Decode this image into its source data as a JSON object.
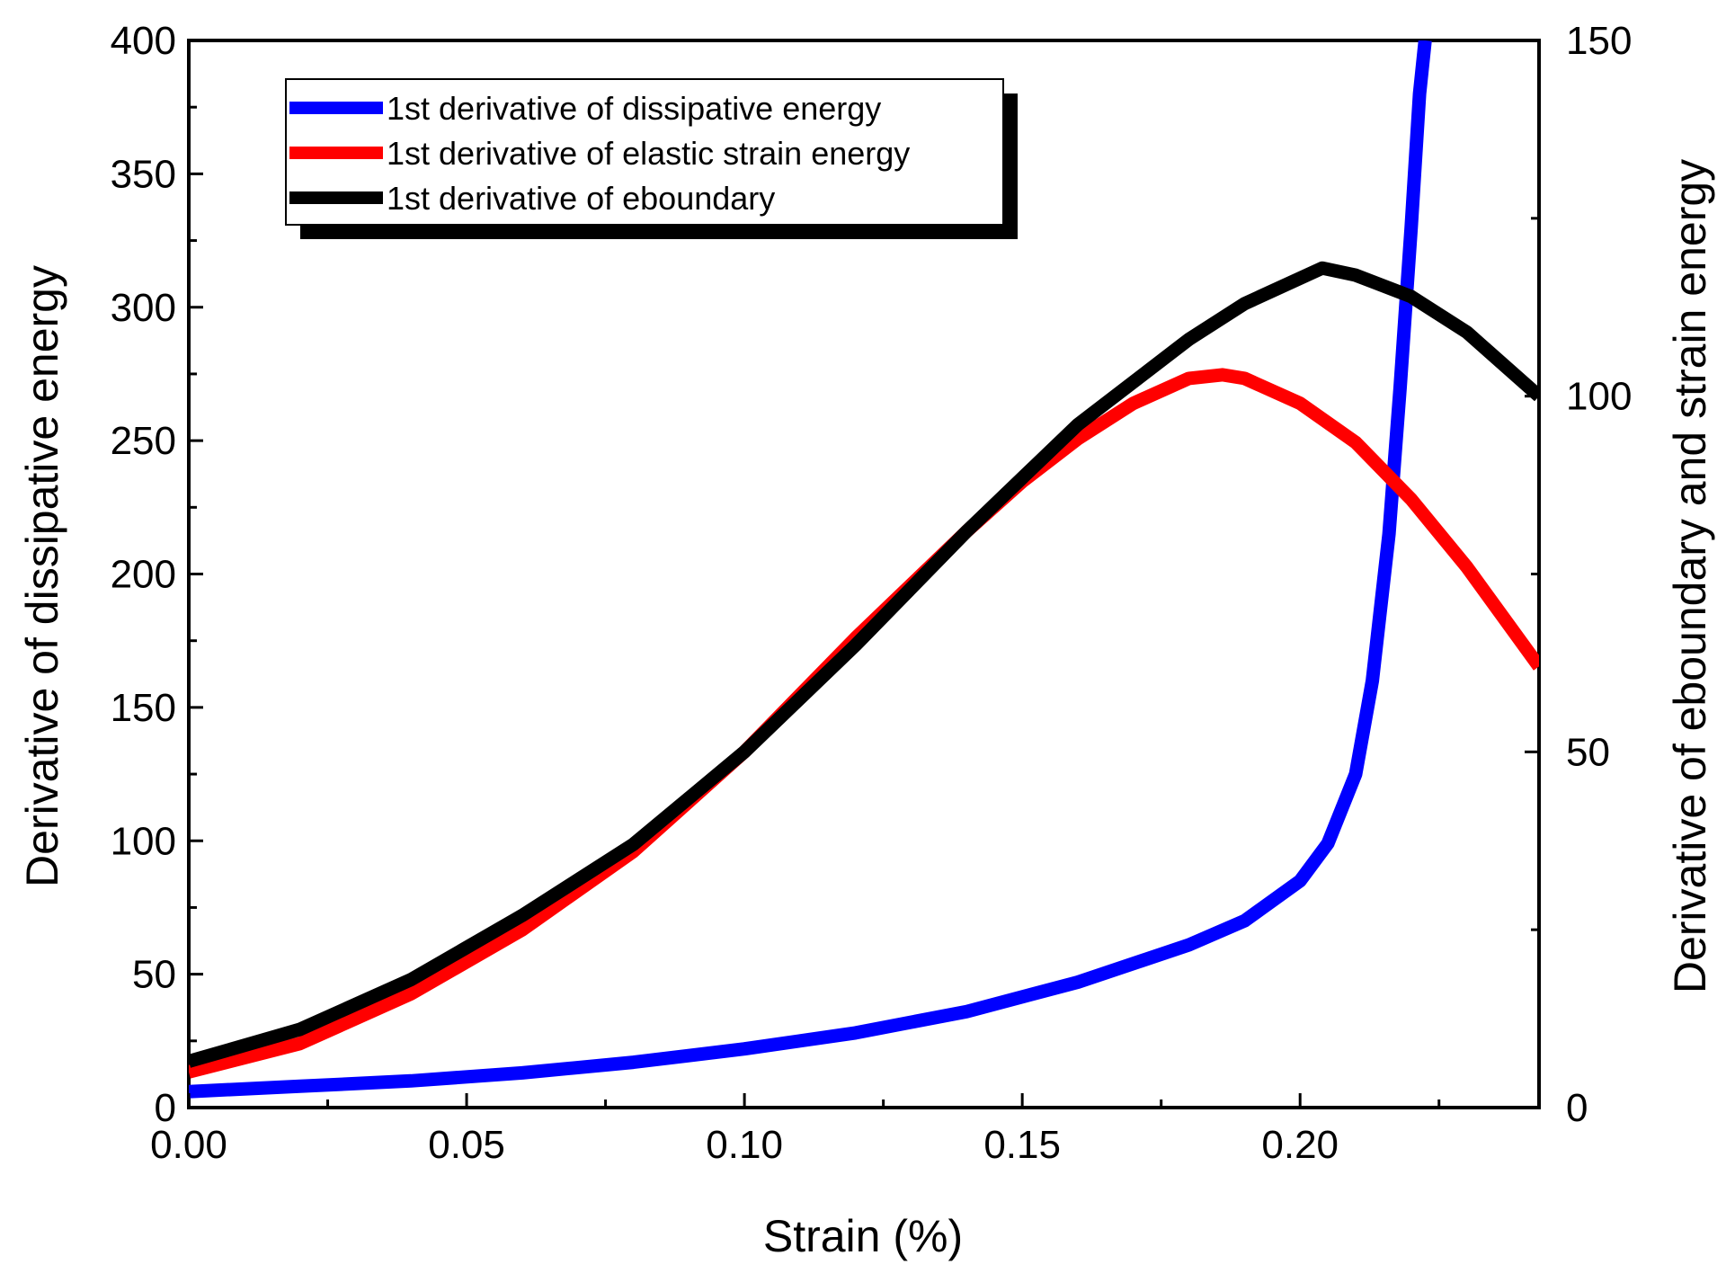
{
  "chart_data": {
    "type": "line",
    "title": "",
    "xlabel": "Strain (%)",
    "ylabel": "Derivative of dissipative energy",
    "y2label": "Derivative of eboundary and strain energy",
    "xlim": [
      0,
      0.243
    ],
    "ylim": [
      0,
      400
    ],
    "y2lim": [
      0,
      150
    ],
    "x_ticks": [
      "0.00",
      "0.05",
      "0.10",
      "0.15",
      "0.20"
    ],
    "y_ticks": [
      "0",
      "50",
      "100",
      "150",
      "200",
      "250",
      "300",
      "350",
      "400"
    ],
    "y2_ticks": [
      "0",
      "50",
      "100",
      "150"
    ],
    "legend_position": "top-left",
    "series": [
      {
        "name": "1st derivative of dissipative energy",
        "color": "#0000ff",
        "axis": "left",
        "x": [
          0,
          0.02,
          0.04,
          0.06,
          0.08,
          0.1,
          0.12,
          0.14,
          0.16,
          0.18,
          0.19,
          0.2,
          0.205,
          0.21,
          0.213,
          0.216,
          0.218,
          0.22,
          0.2215,
          0.2225
        ],
        "y": [
          6,
          8,
          10,
          13,
          17,
          22,
          28,
          36,
          47,
          61,
          70,
          85,
          99,
          125,
          160,
          215,
          270,
          330,
          380,
          400
        ]
      },
      {
        "name": "1st derivative of elastic strain energy",
        "color": "#ff0000",
        "axis": "right",
        "x": [
          0,
          0.02,
          0.04,
          0.06,
          0.08,
          0.1,
          0.12,
          0.14,
          0.15,
          0.16,
          0.17,
          0.18,
          0.186,
          0.19,
          0.2,
          0.21,
          0.22,
          0.23,
          0.243
        ],
        "y": [
          5,
          9,
          16,
          25,
          36,
          50,
          66,
          81,
          88,
          94,
          99,
          102.5,
          103,
          102.5,
          99,
          93.5,
          85.5,
          76,
          62
        ]
      },
      {
        "name": "1st derivative of eboundary",
        "color": "#000000",
        "axis": "right",
        "x": [
          0,
          0.02,
          0.04,
          0.06,
          0.08,
          0.1,
          0.12,
          0.14,
          0.16,
          0.18,
          0.19,
          0.204,
          0.21,
          0.22,
          0.23,
          0.243
        ],
        "y": [
          6.5,
          11,
          18,
          27,
          37,
          50,
          65,
          81,
          96,
          108,
          113,
          118,
          117,
          114,
          109,
          100
        ]
      }
    ]
  }
}
